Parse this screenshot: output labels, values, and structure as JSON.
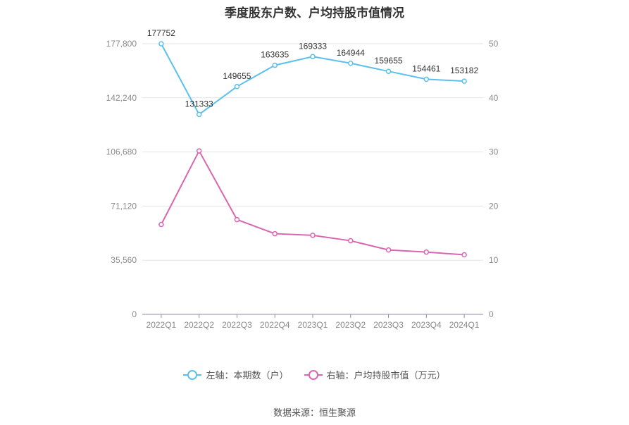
{
  "chart_data": {
    "type": "line",
    "title": "季度股东户数、户均持股市值情况",
    "categories": [
      "2022Q1",
      "2022Q2",
      "2022Q3",
      "2022Q4",
      "2023Q1",
      "2023Q2",
      "2023Q3",
      "2023Q4",
      "2024Q1"
    ],
    "left_axis": {
      "ticks": [
        "0",
        "35,560",
        "71,120",
        "106,680",
        "142,240",
        "177,800"
      ],
      "ylim": [
        0,
        177800
      ]
    },
    "right_axis": {
      "ticks": [
        "0",
        "10",
        "20",
        "30",
        "40",
        "50"
      ],
      "ylim": [
        0,
        50
      ]
    },
    "series": [
      {
        "name": "左轴：本期数（户）",
        "axis": "left",
        "color": "#5bc0eb",
        "values": [
          177752,
          131333,
          149655,
          163635,
          169333,
          164944,
          159655,
          154461,
          153182
        ],
        "labels": [
          "177752",
          "131333",
          "149655",
          "163635",
          "169333",
          "164944",
          "159655",
          "154461",
          "153182"
        ]
      },
      {
        "name": "右轴：户均持股市值（万元）",
        "axis": "right",
        "color": "#d966b0",
        "values": [
          16.6,
          30.2,
          17.5,
          14.9,
          14.6,
          13.6,
          11.9,
          11.5,
          11.0
        ]
      }
    ],
    "grid": true,
    "legend_position": "bottom"
  },
  "source": "数据来源：恒生聚源"
}
